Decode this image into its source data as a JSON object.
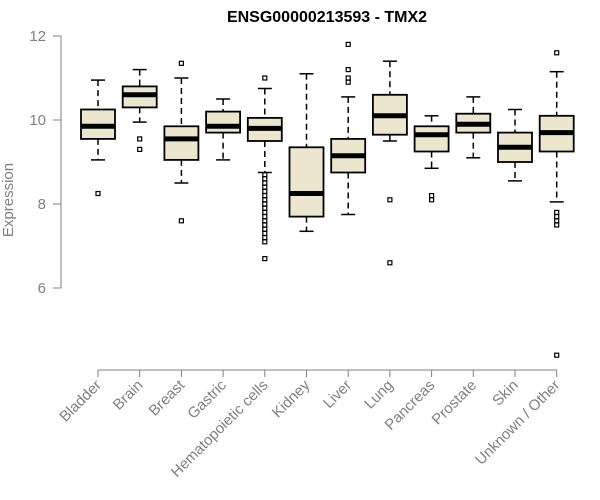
{
  "chart_data": {
    "type": "boxplot",
    "title": "ENSG00000213593 - TMX2",
    "xlabel": "",
    "ylabel": "Expression",
    "ylim": [
      4.0,
      12.0
    ],
    "yticks": [
      6,
      8,
      10,
      12
    ],
    "box_fill": "#ede6cf",
    "categories": [
      "Bladder",
      "Brain",
      "Breast",
      "Gastric",
      "Hematopoietic cells",
      "Kidney",
      "Liver",
      "Lung",
      "Pancreas",
      "Prostate",
      "Skin",
      "Unknown / Other"
    ],
    "boxes": [
      {
        "whisker_low": 9.05,
        "q1": 9.55,
        "median": 9.85,
        "q3": 10.25,
        "whisker_high": 10.95,
        "outliers": [
          8.25
        ]
      },
      {
        "whisker_low": 9.95,
        "q1": 10.3,
        "median": 10.6,
        "q3": 10.8,
        "whisker_high": 11.2,
        "outliers": [
          9.3,
          9.55
        ]
      },
      {
        "whisker_low": 8.5,
        "q1": 9.05,
        "median": 9.55,
        "q3": 9.85,
        "whisker_high": 11.0,
        "outliers": [
          7.6,
          11.35
        ]
      },
      {
        "whisker_low": 9.05,
        "q1": 9.7,
        "median": 9.85,
        "q3": 10.2,
        "whisker_high": 10.5,
        "outliers": []
      },
      {
        "whisker_low": 8.75,
        "q1": 9.5,
        "median": 9.8,
        "q3": 10.05,
        "whisker_high": 10.75,
        "outliers": [
          6.7,
          7.1,
          7.2,
          7.3,
          7.4,
          7.5,
          7.6,
          7.7,
          7.8,
          7.9,
          8.0,
          8.1,
          8.2,
          8.3,
          8.4,
          8.5,
          8.6,
          8.7,
          11.0
        ]
      },
      {
        "whisker_low": 7.35,
        "q1": 7.7,
        "median": 8.25,
        "q3": 9.35,
        "whisker_high": 11.1,
        "outliers": []
      },
      {
        "whisker_low": 7.75,
        "q1": 8.75,
        "median": 9.15,
        "q3": 9.55,
        "whisker_high": 10.55,
        "outliers": [
          10.9,
          11.0,
          11.2,
          11.8
        ]
      },
      {
        "whisker_low": 9.5,
        "q1": 9.65,
        "median": 10.1,
        "q3": 10.6,
        "whisker_high": 11.4,
        "outliers": [
          6.6,
          8.1
        ]
      },
      {
        "whisker_low": 8.85,
        "q1": 9.25,
        "median": 9.65,
        "q3": 9.85,
        "whisker_high": 10.1,
        "outliers": [
          8.1,
          8.2
        ]
      },
      {
        "whisker_low": 9.1,
        "q1": 9.7,
        "median": 9.9,
        "q3": 10.15,
        "whisker_high": 10.55,
        "outliers": []
      },
      {
        "whisker_low": 8.55,
        "q1": 9.0,
        "median": 9.35,
        "q3": 9.7,
        "whisker_high": 10.25,
        "outliers": []
      },
      {
        "whisker_low": 8.05,
        "q1": 9.25,
        "median": 9.7,
        "q3": 10.1,
        "whisker_high": 11.15,
        "outliers": [
          4.4,
          7.5,
          7.6,
          7.7,
          7.8,
          11.6
        ]
      }
    ]
  }
}
